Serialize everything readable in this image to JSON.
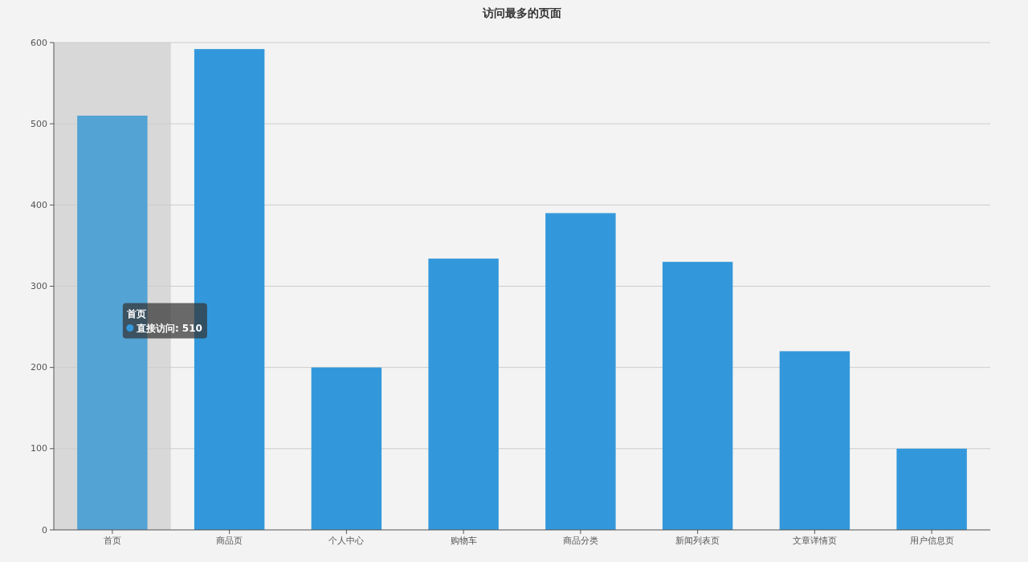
{
  "chart_data": {
    "type": "bar",
    "title": "访问最多的页面",
    "categories": [
      "首页",
      "商品页",
      "个人中心",
      "购物车",
      "商品分类",
      "新闻列表页",
      "文章详情页",
      "用户信息页"
    ],
    "series": [
      {
        "color": "#3398db",
        "colors": [
          "#53a3d4",
          "#3398db",
          "#3398db",
          "#3398db",
          "#3398db",
          "#3398db",
          "#3398db",
          "#3398db"
        ],
        "values": [
          510,
          592,
          200,
          334,
          390,
          330,
          220,
          100
        ]
      }
    ],
    "ylim": [
      0,
      600
    ],
    "yticks": [
      0,
      100,
      200,
      300,
      400,
      500,
      600
    ],
    "grid": "y",
    "bands": [
      {
        "axis": "x",
        "from": "首页",
        "to": "首页",
        "color": "#d8d8d8"
      }
    ],
    "annotations": [
      "首页",
      "直接访问: 510"
    ]
  }
}
